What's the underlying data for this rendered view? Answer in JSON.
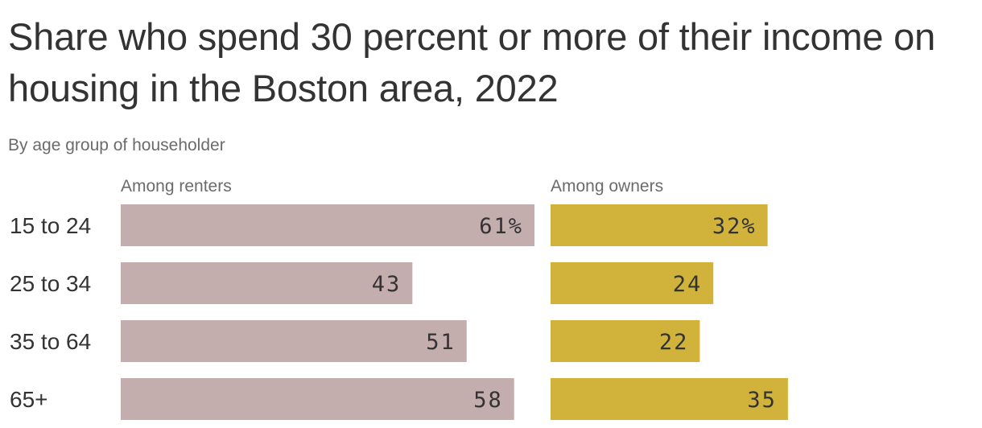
{
  "chart_data": {
    "type": "bar",
    "orientation": "horizontal",
    "title": "Share who spend 30 percent or more of their income on housing in the Boston area, 2022",
    "subtitle": "By age group of householder",
    "categories": [
      "15 to 24",
      "25 to 34",
      "35 to 64",
      "65+"
    ],
    "series": [
      {
        "name": "Among renters",
        "values": [
          61,
          43,
          51,
          58
        ],
        "labels": [
          "61%",
          "43",
          "51",
          "58"
        ],
        "color": "#c4adad"
      },
      {
        "name": "Among owners",
        "values": [
          32,
          24,
          22,
          35
        ],
        "labels": [
          "32%",
          "24",
          "22",
          "35"
        ],
        "color": "#d1b33b"
      }
    ],
    "unit": "%",
    "grid": false,
    "legend": "panel headers"
  }
}
